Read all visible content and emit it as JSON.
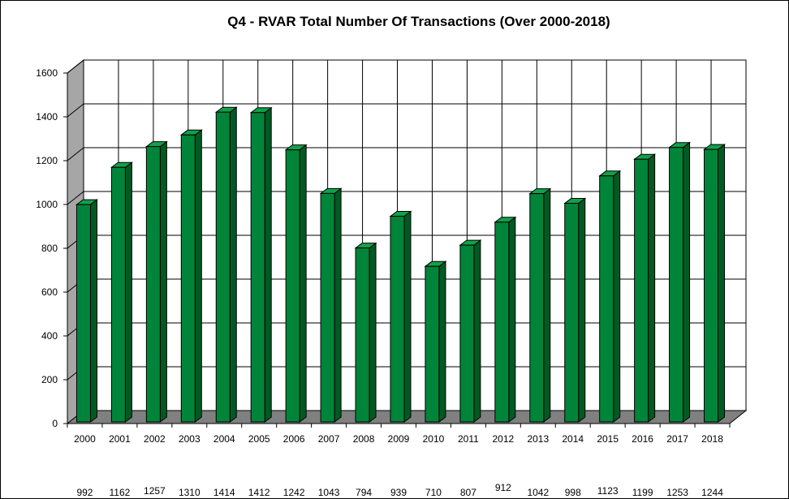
{
  "chart_data": {
    "type": "bar",
    "title": "Q4 - RVAR  Total Number Of Transactions (Over 2000-2018)",
    "xlabel": "",
    "ylabel": "",
    "ylim": [
      0,
      1600
    ],
    "yticks": [
      "0",
      "200",
      "400",
      "600",
      "800",
      "1000",
      "1200",
      "1400",
      "1600"
    ],
    "grid": true,
    "legend": "none",
    "style": "3d-columns",
    "categories": [
      "2000",
      "2001",
      "2002",
      "2003",
      "2004",
      "2005",
      "2006",
      "2007",
      "2008",
      "2009",
      "2010",
      "2011",
      "2012",
      "2013",
      "2014",
      "2015",
      "2016",
      "2017",
      "2018"
    ],
    "values": [
      992,
      1162,
      1257,
      1310,
      1414,
      1412,
      1242,
      1043,
      794,
      939,
      710,
      807,
      912,
      1042,
      998,
      1123,
      1199,
      1253,
      1244
    ],
    "value_labels": [
      "992",
      "1162",
      "1257",
      "1310",
      "1414",
      "1412",
      "1242",
      "1043",
      "794",
      "939",
      "710",
      "807",
      "912",
      "1042",
      "998",
      "1123",
      "1199",
      "1253",
      "1244"
    ],
    "colors": {
      "bar_front": "#00843A",
      "bar_side": "#005A22",
      "bar_top": "#11A14A",
      "wall_side": "#A6A6A6",
      "floor": "#808080",
      "grid": "#000000"
    }
  }
}
